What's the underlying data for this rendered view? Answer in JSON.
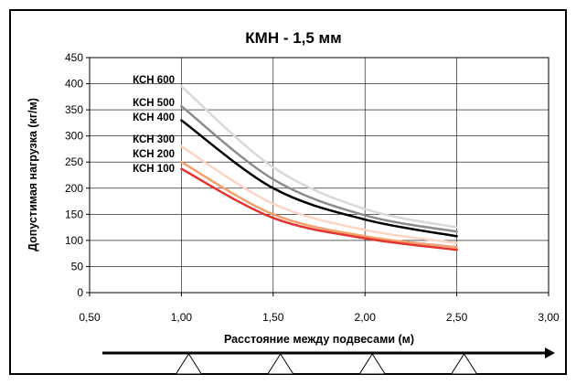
{
  "chart_data": {
    "type": "line",
    "title": "КМН - 1,5 мм",
    "xlabel": "Расстояние между подвесами (м)",
    "ylabel": "Допустимая нагрузка (кг/м)",
    "xlim": [
      0.5,
      3.0
    ],
    "ylim": [
      0,
      450
    ],
    "x_ticks": [
      "0,50",
      "1,00",
      "1,50",
      "2,00",
      "2,50",
      "3,00"
    ],
    "y_ticks": [
      "0",
      "50",
      "100",
      "150",
      "200",
      "250",
      "300",
      "350",
      "400",
      "450"
    ],
    "grid": true,
    "x": [
      1.0,
      1.5,
      2.0,
      2.5
    ],
    "series": [
      {
        "name": "КСН 600",
        "color": "#d9d9d9",
        "values": [
          395,
          240,
          160,
          125
        ]
      },
      {
        "name": "КСН 500",
        "color": "#8c8c8c",
        "values": [
          357,
          217,
          148,
          117
        ]
      },
      {
        "name": "КСН 400",
        "color": "#000000",
        "values": [
          330,
          200,
          140,
          108
        ]
      },
      {
        "name": "КСН 300",
        "color": "#fcd5c5",
        "values": [
          280,
          170,
          120,
          95
        ]
      },
      {
        "name": "КСН 200",
        "color": "#f4a06a",
        "values": [
          250,
          150,
          108,
          87
        ]
      },
      {
        "name": "КСН 100",
        "color": "#e3342f",
        "values": [
          237,
          143,
          104,
          82
        ]
      }
    ]
  }
}
